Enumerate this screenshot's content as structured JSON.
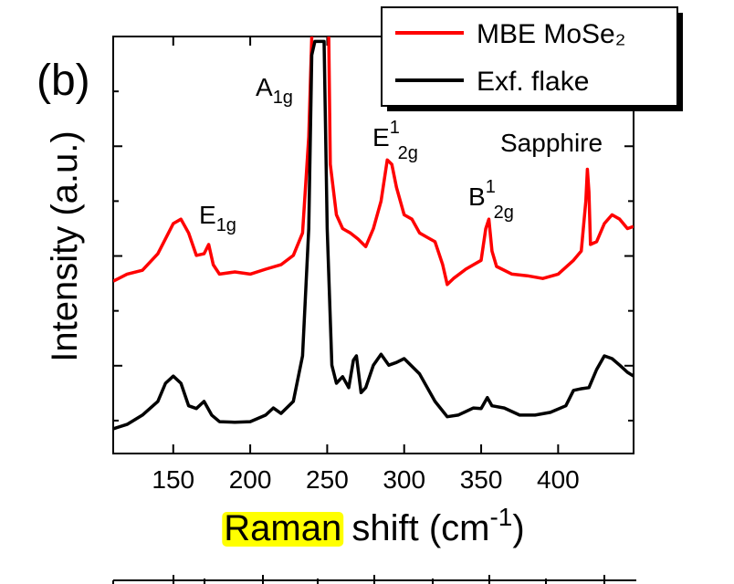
{
  "chart_data": {
    "type": "line",
    "panel_label": "(b)",
    "x_label": [
      "Raman",
      " shift (cm",
      "-1",
      ")"
    ],
    "y_label": "Intensity (a.u.)",
    "xlim": [
      111,
      449
    ],
    "xticks": [
      150,
      200,
      250,
      300,
      350,
      400
    ],
    "ylim": [
      -0.6,
      7
    ],
    "yticks": [
      0,
      1,
      2,
      3,
      4,
      5,
      6
    ],
    "legend": "top-right",
    "annotations": [
      {
        "base": "A",
        "sub": "1g"
      },
      {
        "base": "E",
        "sub": "1g"
      },
      {
        "base": "E",
        "sup": "1",
        "sub": "2g"
      },
      {
        "base": "B",
        "sup": "1",
        "sub": "2g"
      },
      {
        "base": "Sapphire"
      }
    ],
    "series": [
      {
        "name": "MBE MoSe₂",
        "color": "#ff0000",
        "x": [
          111,
          120,
          130,
          140,
          150,
          155,
          160,
          165,
          170,
          173,
          176,
          180,
          190,
          200,
          210,
          220,
          228,
          234,
          238,
          240,
          244,
          248,
          251,
          252,
          256,
          260,
          265,
          270,
          275,
          280,
          285,
          289,
          292,
          295,
          300,
          305,
          310,
          315,
          320,
          325,
          328,
          332,
          340,
          345,
          350,
          353,
          355,
          357,
          360,
          370,
          380,
          390,
          400,
          410,
          415,
          418,
          419,
          420,
          421,
          425,
          430,
          435,
          440,
          445,
          449
        ],
        "values": [
          2.54,
          2.67,
          2.74,
          3.04,
          3.59,
          3.67,
          3.42,
          3.01,
          3.04,
          3.21,
          2.84,
          2.67,
          2.71,
          2.67,
          2.76,
          2.84,
          3.01,
          3.42,
          5.17,
          6.99,
          9,
          9,
          6.99,
          4.67,
          3.75,
          3.5,
          3.42,
          3.31,
          3.17,
          3.5,
          4.0,
          4.75,
          4.67,
          4.25,
          3.75,
          3.67,
          3.42,
          3.34,
          3.26,
          2.84,
          2.48,
          2.59,
          2.76,
          2.84,
          2.92,
          3.5,
          3.67,
          3.09,
          2.81,
          2.67,
          2.64,
          2.59,
          2.67,
          2.92,
          3.09,
          4.0,
          4.58,
          4.17,
          3.21,
          3.26,
          3.59,
          3.75,
          3.67,
          3.5,
          3.54
        ]
      },
      {
        "name": "Exf. flake",
        "color": "#000000",
        "x": [
          111,
          120,
          130,
          140,
          145,
          150,
          155,
          160,
          165,
          170,
          175,
          180,
          190,
          200,
          210,
          215,
          220,
          228,
          234,
          238,
          240,
          242,
          248,
          250,
          253,
          256,
          260,
          264,
          267,
          269,
          272,
          275,
          280,
          285,
          290,
          295,
          300,
          310,
          320,
          328,
          335,
          345,
          350,
          354,
          357,
          365,
          375,
          385,
          395,
          405,
          410,
          415,
          420,
          425,
          430,
          435,
          440,
          445,
          449
        ],
        "values": [
          -0.15,
          -0.07,
          0.1,
          0.35,
          0.68,
          0.81,
          0.68,
          0.27,
          0.22,
          0.35,
          0.1,
          -0.02,
          -0.03,
          -0.02,
          0.1,
          0.23,
          0.13,
          0.35,
          1.18,
          3.5,
          6.66,
          6.91,
          6.91,
          3.5,
          1.01,
          0.68,
          0.8,
          0.6,
          1.1,
          1.18,
          0.51,
          0.6,
          1.01,
          1.21,
          1.01,
          1.06,
          1.13,
          0.85,
          0.35,
          0.07,
          0.1,
          0.23,
          0.22,
          0.42,
          0.27,
          0.23,
          0.1,
          0.1,
          0.15,
          0.27,
          0.55,
          0.58,
          0.6,
          0.93,
          1.18,
          1.13,
          1.01,
          0.88,
          0.81
        ]
      }
    ]
  }
}
